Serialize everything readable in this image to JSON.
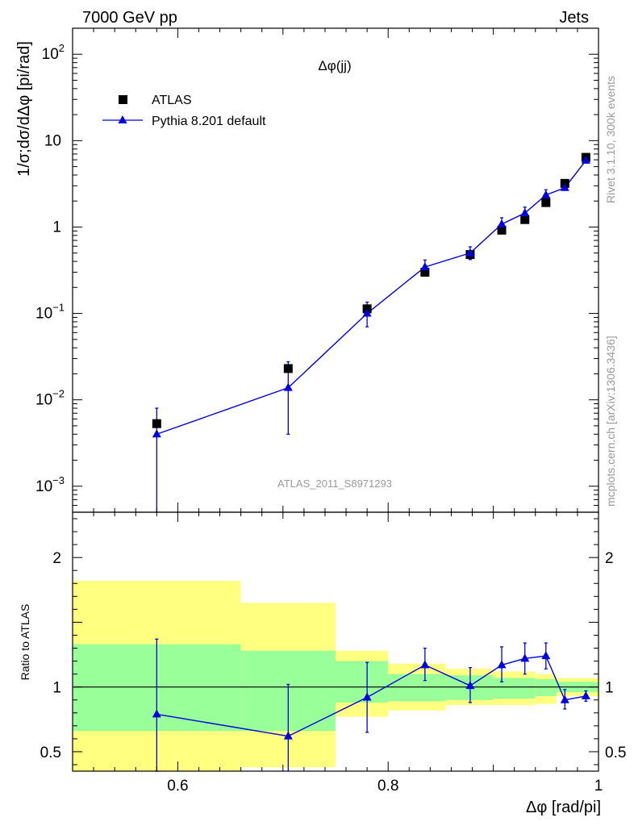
{
  "header": {
    "left_title": "7000 GeV pp",
    "right_title": "Jets"
  },
  "plot_title": "Δφ(jj)",
  "analysis_id": "ATLAS_2011_S8971293",
  "side_text": {
    "upper": "Rivet 3.1.10,  300k events",
    "lower": "mcplots.cern.ch [arXiv:1306.3436]"
  },
  "legend": {
    "placement": "top-left",
    "entries": [
      {
        "label": "ATLAS",
        "marker": "square",
        "color": "#000000"
      },
      {
        "label": "Pythia 8.201 default",
        "marker": "triangle",
        "color": "#0000dd"
      }
    ]
  },
  "colors": {
    "data": "#000000",
    "mc": "#0000dd",
    "band_inner": "#99ff99",
    "band_outer": "#ffff80",
    "mc_label": "#999999"
  },
  "chart_data": [
    {
      "type": "scatter",
      "role": "main",
      "ylabel": "1/σ;dσ/dΔφ [pi/rad]",
      "yscale": "log",
      "xlim": [
        0.5,
        1.0
      ],
      "ylim": [
        0.0005,
        200
      ],
      "y_ticks": [
        {
          "value": 100,
          "label": "10",
          "exp": "2"
        },
        {
          "value": 10,
          "label": "10",
          "exp": ""
        },
        {
          "value": 1,
          "label": "1",
          "exp": ""
        },
        {
          "value": 0.1,
          "label": "10",
          "exp": "−1"
        },
        {
          "value": 0.01,
          "label": "10",
          "exp": "−2"
        },
        {
          "value": 0.001,
          "label": "10",
          "exp": "−3"
        }
      ],
      "series": [
        {
          "name": "ATLAS",
          "x": [
            0.58,
            0.705,
            0.78,
            0.835,
            0.878,
            0.908,
            0.93,
            0.95,
            0.968,
            0.988
          ],
          "y": [
            0.0053,
            0.023,
            0.113,
            0.3,
            0.48,
            0.92,
            1.22,
            1.92,
            3.2,
            6.4
          ]
        },
        {
          "name": "Pythia 8.201 default",
          "x": [
            0.58,
            0.705,
            0.78,
            0.835,
            0.878,
            0.908,
            0.93,
            0.95,
            0.968,
            0.988
          ],
          "y": [
            0.004,
            0.0138,
            0.1,
            0.345,
            0.5,
            1.08,
            1.45,
            2.35,
            2.85,
            5.9
          ],
          "err_low": [
            0.004,
            0.0098,
            0.03,
            0.06,
            0.08,
            0.15,
            0.2,
            0.25,
            0.15,
            0.3
          ],
          "err_high": [
            0.004,
            0.0138,
            0.035,
            0.07,
            0.09,
            0.2,
            0.25,
            0.35,
            0.15,
            0.4
          ]
        }
      ]
    },
    {
      "type": "line",
      "role": "ratio",
      "xlabel": "Δφ [rad/pi]",
      "ylabel": "Ratio to ATLAS",
      "xlim": [
        0.5,
        1.0
      ],
      "ylim": [
        0.35,
        2.35
      ],
      "x_ticks": [
        0.6,
        0.8,
        1.0
      ],
      "x_tick_labels": [
        "0.6",
        "0.8",
        "1"
      ],
      "y_ticks": [
        0.5,
        1,
        2
      ],
      "y_tick_labels": [
        "0.5",
        "1",
        "2"
      ],
      "bands": [
        {
          "x0": 0.5,
          "x1": 0.66,
          "inner": [
            0.66,
            1.33
          ],
          "outer": [
            0.35,
            1.82
          ]
        },
        {
          "x0": 0.66,
          "x1": 0.75,
          "inner": [
            0.66,
            1.28
          ],
          "outer": [
            0.38,
            1.65
          ]
        },
        {
          "x0": 0.75,
          "x1": 0.8,
          "inner": [
            0.88,
            1.2
          ],
          "outer": [
            0.77,
            1.28
          ]
        },
        {
          "x0": 0.8,
          "x1": 0.855,
          "inner": [
            0.89,
            1.1
          ],
          "outer": [
            0.82,
            1.18
          ]
        },
        {
          "x0": 0.855,
          "x1": 0.9,
          "inner": [
            0.9,
            1.09
          ],
          "outer": [
            0.86,
            1.14
          ]
        },
        {
          "x0": 0.9,
          "x1": 0.94,
          "inner": [
            0.91,
            1.07
          ],
          "outer": [
            0.86,
            1.12
          ]
        },
        {
          "x0": 0.94,
          "x1": 0.96,
          "inner": [
            0.93,
            1.06
          ],
          "outer": [
            0.87,
            1.1
          ]
        },
        {
          "x0": 0.96,
          "x1": 1.0,
          "inner": [
            0.96,
            1.04
          ],
          "outer": [
            0.93,
            1.07
          ]
        }
      ],
      "series": [
        {
          "name": "Pythia 8.201 default",
          "x": [
            0.58,
            0.705,
            0.78,
            0.835,
            0.878,
            0.908,
            0.93,
            0.95,
            0.968,
            0.988
          ],
          "y": [
            0.79,
            0.62,
            0.92,
            1.17,
            1.01,
            1.17,
            1.22,
            1.24,
            0.9,
            0.93
          ],
          "err_low": [
            0.44,
            0.27,
            0.27,
            0.12,
            0.13,
            0.13,
            0.12,
            0.1,
            0.07,
            0.04
          ],
          "err_high": [
            0.58,
            0.4,
            0.27,
            0.13,
            0.14,
            0.14,
            0.12,
            0.1,
            0.08,
            0.04
          ]
        }
      ]
    }
  ]
}
